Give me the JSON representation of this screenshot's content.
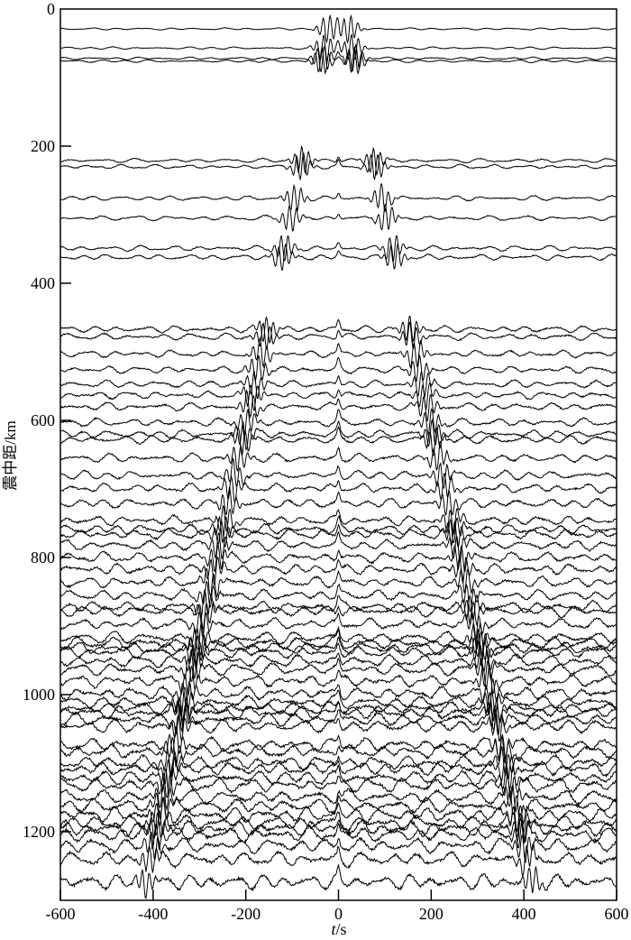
{
  "chart_data": {
    "type": "line",
    "title": "",
    "xlabel": "t/s",
    "xlabel_parts": {
      "var": "t",
      "unit": "/s"
    },
    "ylabel": "震中距/km",
    "xlim": [
      -600,
      600
    ],
    "ylim": [
      0,
      1300
    ],
    "y_inverted": true,
    "xticks": [
      -600,
      -400,
      -200,
      0,
      200,
      400,
      600
    ],
    "yticks": [
      0,
      200,
      400,
      600,
      800,
      1000,
      1200
    ],
    "grid": false,
    "legend": "none",
    "line_color": "#000000",
    "trace_distances_km": [
      29,
      57,
      72,
      76,
      221,
      230,
      276,
      305,
      349,
      362,
      467,
      478,
      503,
      526,
      547,
      563,
      580,
      603,
      620,
      628,
      655,
      680,
      699,
      721,
      746,
      759,
      766,
      782,
      800,
      817,
      836,
      855,
      872,
      878,
      897,
      917,
      925,
      932,
      938,
      951,
      963,
      980,
      998,
      1011,
      1020,
      1026,
      1036,
      1046,
      1073,
      1083,
      1099,
      1108,
      1121,
      1132,
      1149,
      1162,
      1175,
      1187,
      1195,
      1204,
      1220,
      1240,
      1273
    ]
  }
}
